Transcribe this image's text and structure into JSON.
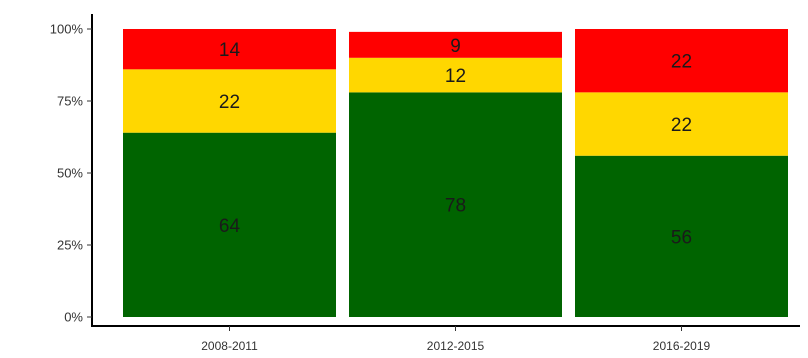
{
  "chart_data": {
    "type": "bar",
    "stacked": true,
    "percent": true,
    "categories": [
      "2008-2011",
      "2012-2015",
      "2016-2019"
    ],
    "series": [
      {
        "color": "#006400",
        "values": [
          64,
          78,
          56
        ]
      },
      {
        "color": "#FFD700",
        "values": [
          22,
          12,
          22
        ]
      },
      {
        "color": "#FF0000",
        "values": [
          14,
          9,
          22
        ]
      }
    ],
    "ylim": [
      0,
      100
    ],
    "yticks": [
      {
        "value": 0,
        "label": "0%"
      },
      {
        "value": 25,
        "label": "25%"
      },
      {
        "value": 50,
        "label": "50%"
      },
      {
        "value": 75,
        "label": "75%"
      },
      {
        "value": 100,
        "label": "100%"
      }
    ],
    "title": "",
    "xlabel": "",
    "ylabel": "",
    "grid": false,
    "legend": false
  }
}
